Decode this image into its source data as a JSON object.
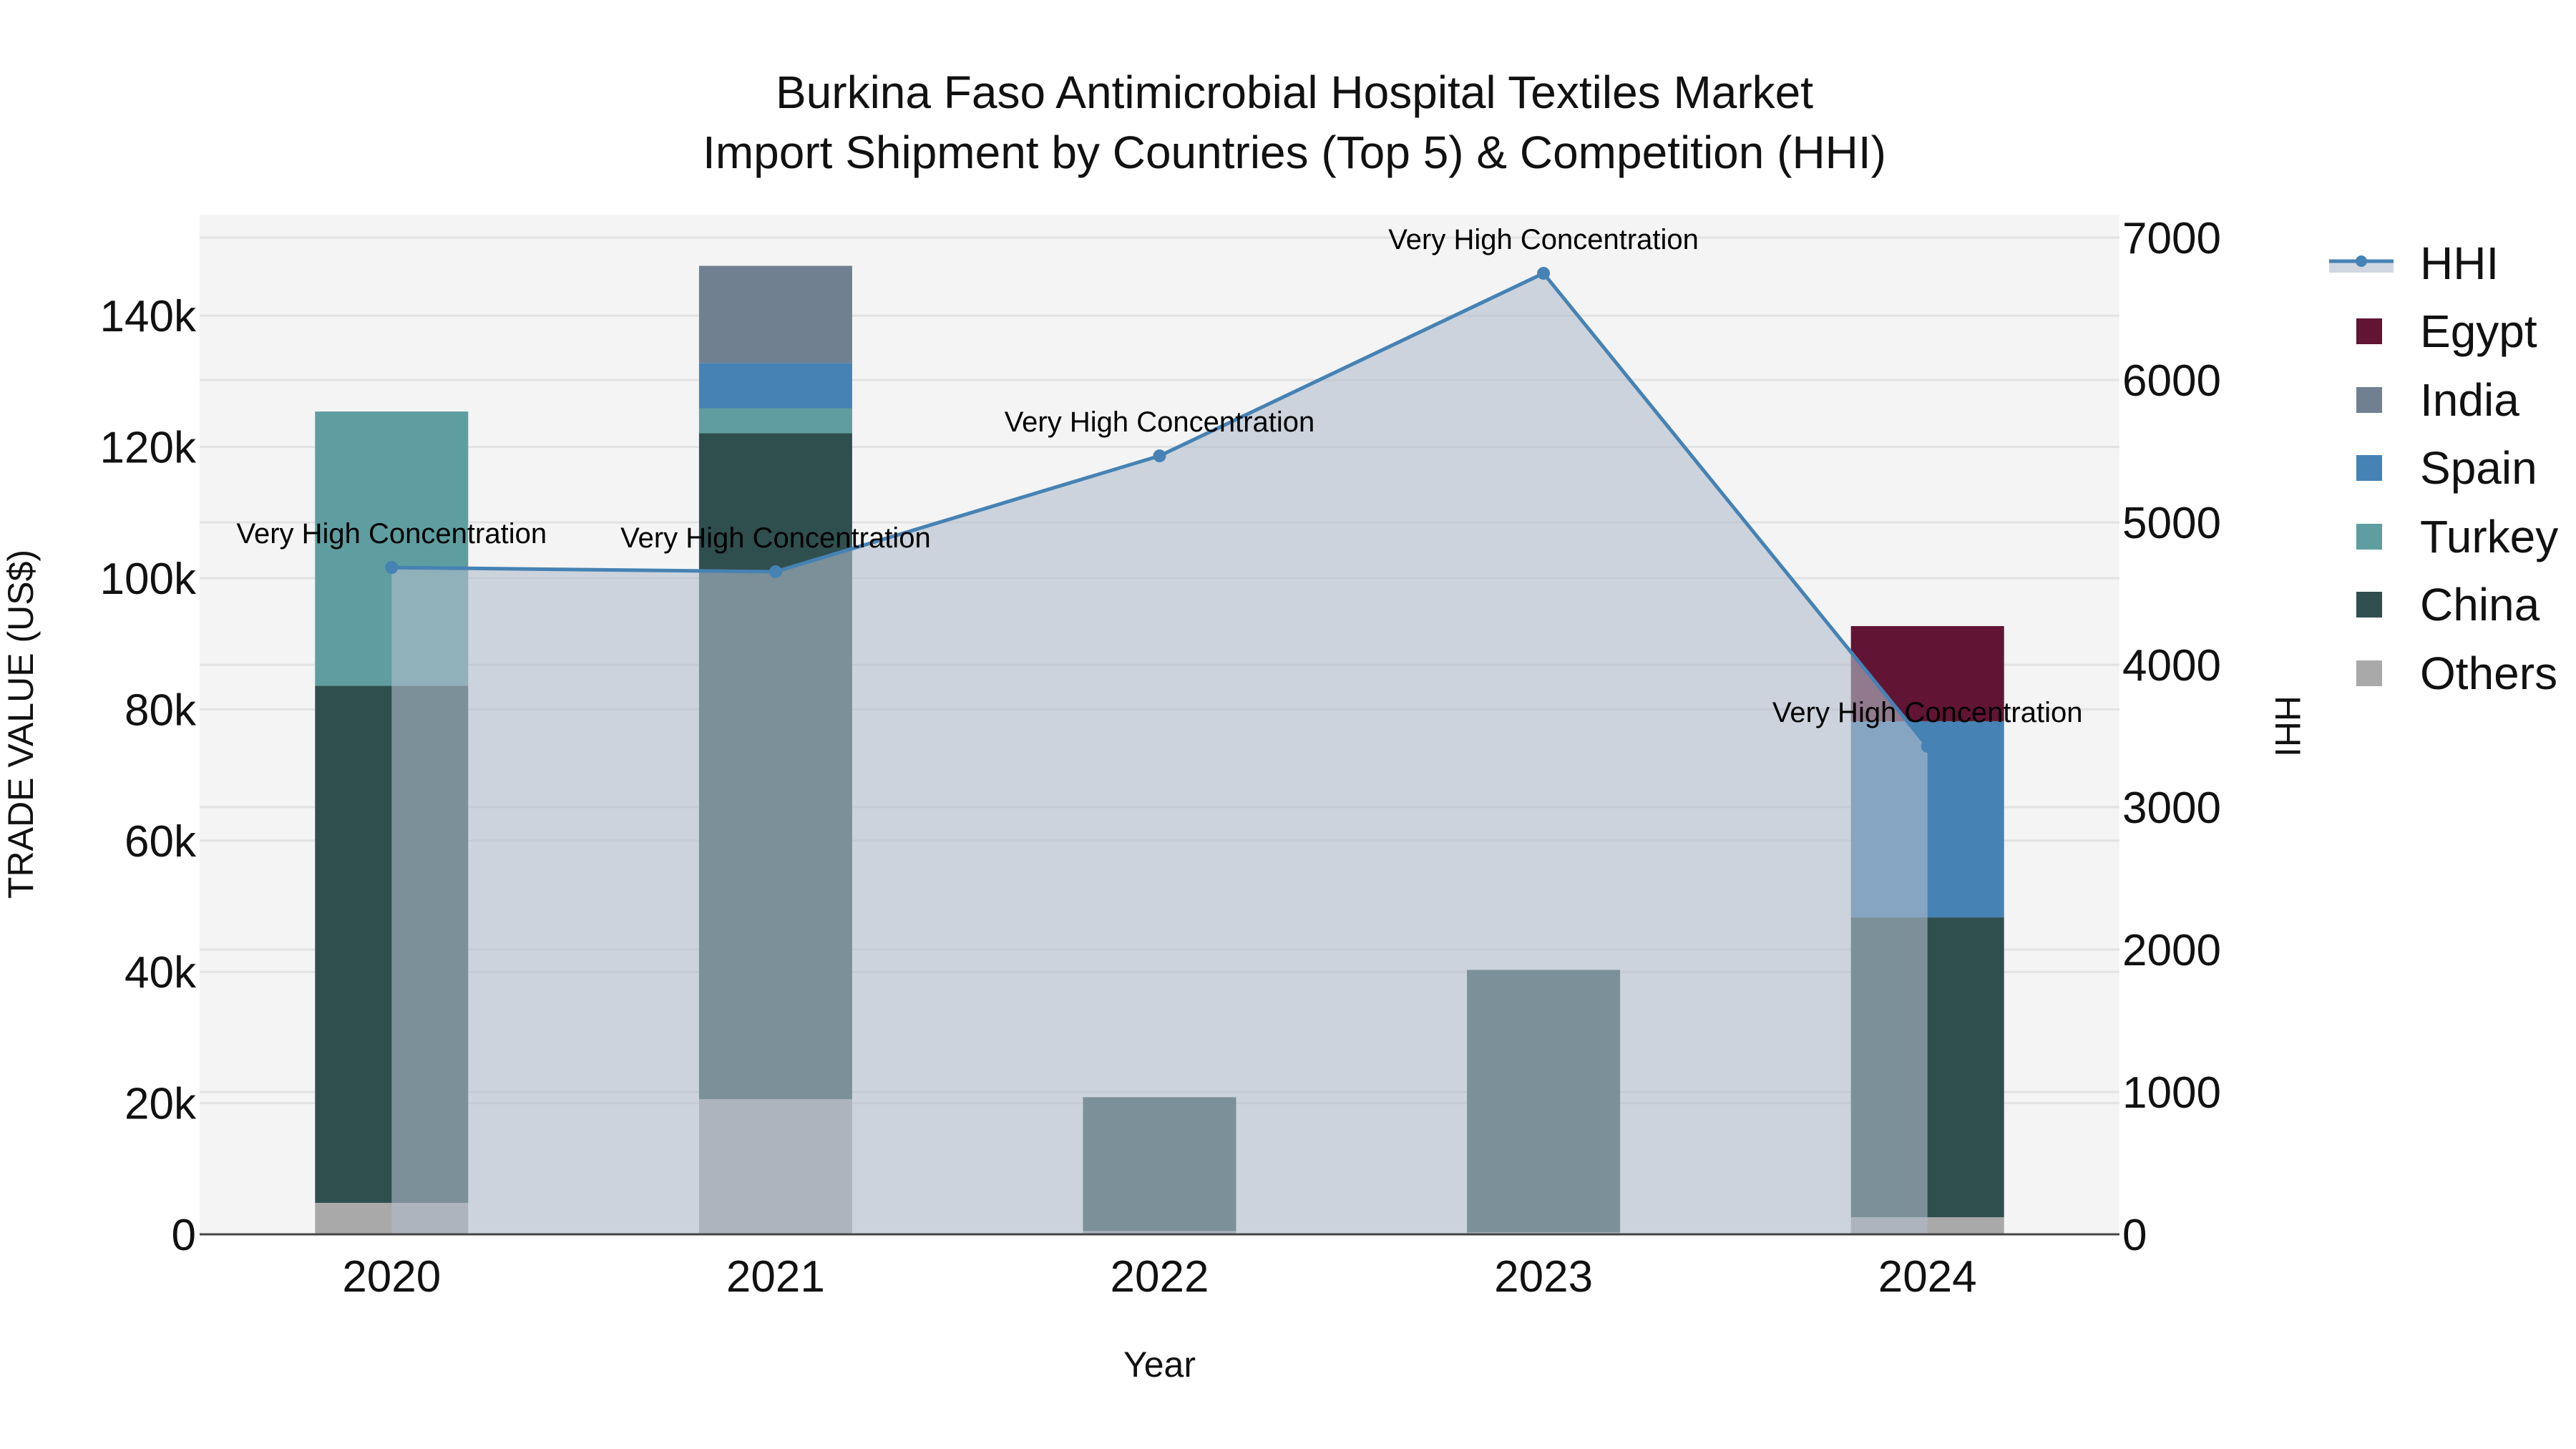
{
  "title": {
    "line1": "Burkina Faso Antimicrobial Hospital Textiles Market",
    "line2": "Import Shipment by Countries (Top 5) & Competition (HHI)"
  },
  "colors": {
    "plot_bg": "#f4f4f4",
    "grid": "#e2e2e2",
    "hhi_line": "#4682b4",
    "hhi_fill": "rgba(176,188,204,0.6)",
    "Egypt": "#611434",
    "India": "#708090",
    "Spain": "#4682b4",
    "Turkey": "#5f9ea0",
    "China": "#2f4f4f",
    "Others": "#a9a9a9"
  },
  "legend": [
    {
      "name": "HHI",
      "type": "line"
    },
    {
      "name": "Egypt",
      "type": "bar"
    },
    {
      "name": "India",
      "type": "bar"
    },
    {
      "name": "Spain",
      "type": "bar"
    },
    {
      "name": "Turkey",
      "type": "bar"
    },
    {
      "name": "China",
      "type": "bar"
    },
    {
      "name": "Others",
      "type": "bar"
    }
  ],
  "chart_data": {
    "type": "bar",
    "stacked": true,
    "title": "Burkina Faso Antimicrobial Hospital Textiles Market\nImport Shipment by Countries (Top 5) & Competition (HHI)",
    "xlabel": "Year",
    "ylabel": "TRADE VALUE (US$)",
    "y2label": "HHI",
    "categories": [
      "2020",
      "2021",
      "2022",
      "2023",
      "2024"
    ],
    "ylim": [
      0,
      153000
    ],
    "y_ticks": [
      0,
      20000,
      40000,
      60000,
      80000,
      100000,
      120000,
      140000
    ],
    "y_tick_labels": [
      "0",
      "20k",
      "40k",
      "60k",
      "80k",
      "100k",
      "120k",
      "140k"
    ],
    "y2lim": [
      0,
      7380
    ],
    "y2_ticks": [
      0,
      1000,
      2000,
      3000,
      4000,
      5000,
      6000,
      7000
    ],
    "y2_tick_labels": [
      "0",
      "1000",
      "2000",
      "3000",
      "4000",
      "5000",
      "6000",
      "7000"
    ],
    "grid": true,
    "legend_position": "right",
    "series": [
      {
        "name": "Others",
        "values": [
          4800,
          20600,
          500,
          300,
          2600
        ]
      },
      {
        "name": "China",
        "values": [
          78800,
          101500,
          20400,
          40000,
          45700
        ]
      },
      {
        "name": "Turkey",
        "values": [
          41800,
          3800,
          0,
          0,
          0
        ]
      },
      {
        "name": "Spain",
        "values": [
          0,
          6900,
          0,
          0,
          29900
        ]
      },
      {
        "name": "India",
        "values": [
          0,
          14800,
          0,
          0,
          0
        ]
      },
      {
        "name": "Egypt",
        "values": [
          0,
          0,
          0,
          0,
          14500
        ]
      }
    ],
    "line_series": {
      "name": "HHI",
      "axis": "y2",
      "fill": "tozeroy",
      "values": [
        4683,
        4653,
        5467,
        6749,
        3427
      ],
      "annotations": [
        "Very High Concentration",
        "Very High Concentration",
        "Very High Concentration",
        "Very High Concentration",
        "Very High Concentration"
      ]
    }
  }
}
